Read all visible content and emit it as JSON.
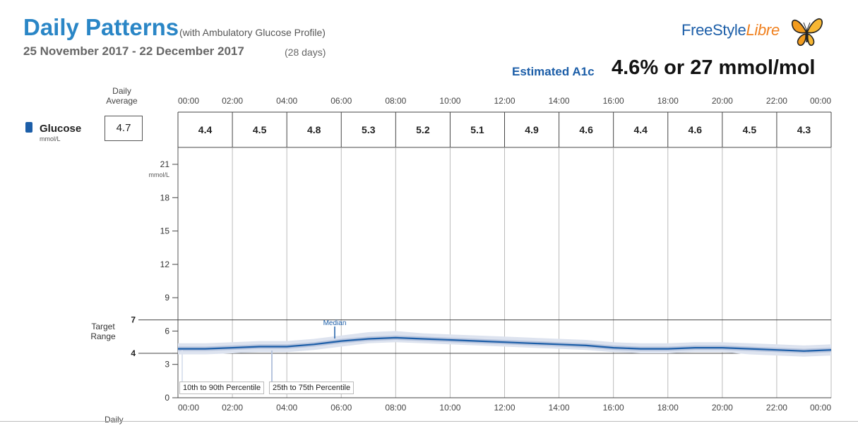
{
  "header": {
    "title": "Daily Patterns",
    "subtitle": "(with Ambulatory Glucose Profile)",
    "date_range": "25 November 2017 - 22 December 2017",
    "days": "(28 days)"
  },
  "brand": {
    "name_part1": "FreeStyle",
    "name_part2": "Libre"
  },
  "a1c": {
    "label": "Estimated A1c",
    "value": "4.6% or 27 mmol/mol"
  },
  "summary": {
    "daily_average_label": "Daily Average",
    "glucose_label": "Glucose",
    "glucose_unit": "mmol/L",
    "daily_average_value": "4.7"
  },
  "target_range": {
    "label": "Target Range",
    "low": 4,
    "high": 7
  },
  "footer_label": "Daily",
  "colors": {
    "accent_blue": "#2a86c6",
    "median_line": "#1c5ea8",
    "band_10_90": "#dde3ef",
    "band_25_75": "#b8c5de",
    "brand_orange": "#f0801e"
  },
  "chart_data": {
    "type": "area",
    "x_ticks": [
      "00:00",
      "02:00",
      "04:00",
      "06:00",
      "08:00",
      "10:00",
      "12:00",
      "14:00",
      "16:00",
      "18:00",
      "20:00",
      "22:00",
      "00:00"
    ],
    "period_averages": [
      "4.4",
      "4.5",
      "4.8",
      "5.3",
      "5.2",
      "5.1",
      "4.9",
      "4.6",
      "4.4",
      "4.6",
      "4.5",
      "4.3"
    ],
    "y_ticks": [
      0,
      3,
      4,
      6,
      9,
      12,
      15,
      18,
      21
    ],
    "y_unit": "mmol/L",
    "ylim": [
      0,
      22.5
    ],
    "xlim_hours": [
      0,
      24
    ],
    "x_hours": [
      0,
      1,
      2,
      3,
      4,
      5,
      6,
      7,
      8,
      9,
      10,
      11,
      12,
      13,
      14,
      15,
      16,
      17,
      18,
      19,
      20,
      21,
      22,
      23,
      24
    ],
    "median": [
      4.4,
      4.4,
      4.5,
      4.6,
      4.6,
      4.8,
      5.1,
      5.3,
      5.4,
      5.3,
      5.2,
      5.1,
      5.0,
      4.9,
      4.8,
      4.7,
      4.5,
      4.4,
      4.4,
      4.5,
      4.5,
      4.4,
      4.3,
      4.2,
      4.3
    ],
    "p25": [
      4.2,
      4.2,
      4.3,
      4.4,
      4.4,
      4.6,
      4.9,
      5.1,
      5.2,
      5.1,
      5.0,
      4.9,
      4.8,
      4.7,
      4.6,
      4.5,
      4.3,
      4.2,
      4.2,
      4.3,
      4.3,
      4.2,
      4.1,
      4.0,
      4.1
    ],
    "p75": [
      4.6,
      4.6,
      4.7,
      4.8,
      4.8,
      5.0,
      5.3,
      5.5,
      5.6,
      5.5,
      5.4,
      5.3,
      5.2,
      5.1,
      5.0,
      4.9,
      4.7,
      4.6,
      4.6,
      4.7,
      4.7,
      4.6,
      4.5,
      4.4,
      4.5
    ],
    "p10": [
      3.9,
      3.9,
      4.0,
      4.1,
      4.1,
      4.3,
      4.6,
      4.9,
      5.0,
      4.9,
      4.8,
      4.7,
      4.6,
      4.5,
      4.4,
      4.3,
      4.1,
      4.0,
      4.0,
      4.1,
      4.1,
      3.9,
      3.8,
      3.7,
      3.8
    ],
    "p90": [
      4.9,
      4.9,
      5.0,
      5.1,
      5.1,
      5.3,
      5.6,
      5.9,
      6.0,
      5.8,
      5.7,
      5.6,
      5.5,
      5.4,
      5.3,
      5.2,
      5.0,
      4.9,
      4.9,
      5.0,
      5.0,
      4.9,
      4.8,
      4.7,
      4.8
    ],
    "legend": {
      "p10_90": "10th to 90th Percentile",
      "p25_75": "25th to 75th Percentile",
      "median": "Median"
    }
  }
}
